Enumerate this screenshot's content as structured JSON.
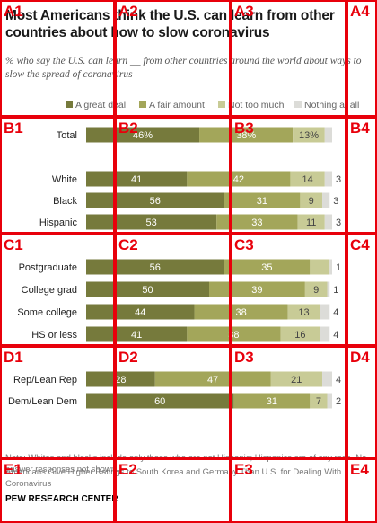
{
  "title": "Most Americans think the U.S. can learn from other countries about how to slow coronavirus",
  "subtitle": "% who say the U.S. can learn __ from other countries around the world about ways to slow the spread of coronavirus",
  "note": "Note: Whites and blacks include only those who are not Hispanic; Hispanics are of any race. No answer responses not shown.",
  "related": "Americans Give Higher Ratings to South Korea and Germany Than U.S. for Dealing With Coronavirus",
  "source": "PEW RESEARCH CENTER",
  "colors": {
    "great_deal": "#767a3c",
    "fair_amount": "#a3a65a",
    "not_too_much": "#c8cb96",
    "nothing_at_all": "#dcdcd8"
  },
  "chart_data": {
    "type": "bar",
    "orientation": "horizontal",
    "stacked": true,
    "legend": "top",
    "xlim": [
      0,
      100
    ],
    "categories": [
      "Total",
      "White",
      "Black",
      "Hispanic",
      "Postgraduate",
      "College grad",
      "Some college",
      "HS or less",
      "Rep/Lean Rep",
      "Dem/Lean Dem"
    ],
    "value_labels": [
      [
        "46%",
        "38%",
        "13%",
        ""
      ],
      [
        "41",
        "42",
        "14",
        "3"
      ],
      [
        "56",
        "31",
        "9",
        "3"
      ],
      [
        "53",
        "33",
        "11",
        "3"
      ],
      [
        "56",
        "35",
        "",
        "1"
      ],
      [
        "50",
        "39",
        "9",
        "1"
      ],
      [
        "44",
        "38",
        "13",
        "4"
      ],
      [
        "41",
        "38",
        "16",
        "4"
      ],
      [
        "28",
        "47",
        "21",
        "4"
      ],
      [
        "60",
        "31",
        "7",
        "2"
      ]
    ],
    "series": [
      {
        "name": "A great deal",
        "values": [
          46,
          41,
          56,
          53,
          56,
          50,
          44,
          41,
          28,
          60
        ]
      },
      {
        "name": "A fair amount",
        "values": [
          38,
          42,
          31,
          33,
          35,
          39,
          38,
          38,
          47,
          31
        ]
      },
      {
        "name": "Not too much",
        "values": [
          13,
          14,
          9,
          11,
          8,
          9,
          13,
          16,
          21,
          7
        ]
      },
      {
        "name": "Nothing at all",
        "values": [
          3,
          3,
          3,
          3,
          1,
          1,
          4,
          4,
          4,
          2
        ]
      }
    ]
  },
  "grid_overlay": {
    "labels": [
      "A1",
      "A2",
      "A3",
      "A4",
      "B1",
      "B2",
      "B3",
      "B4",
      "C1",
      "C2",
      "C3",
      "C4",
      "D1",
      "D2",
      "D3",
      "D4",
      "E1",
      "E2",
      "E3",
      "E4"
    ]
  }
}
